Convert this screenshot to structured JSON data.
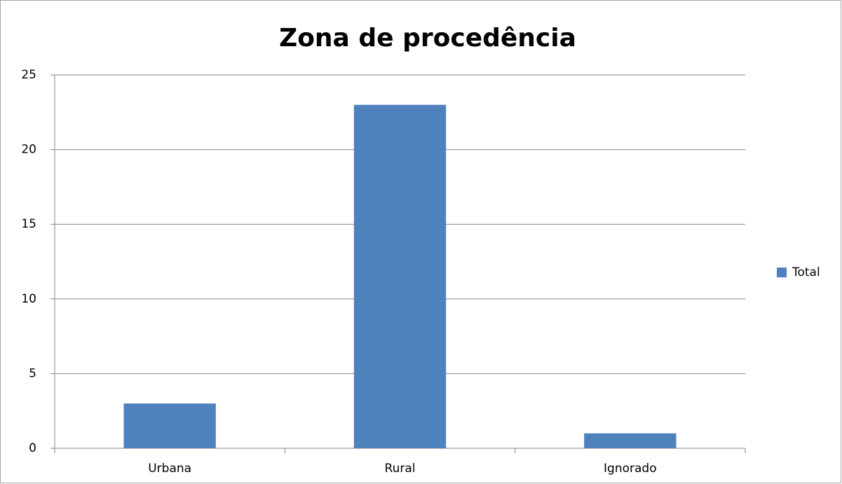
{
  "chart_data": {
    "type": "bar",
    "title": "Zona de procedência",
    "categories": [
      "Urbana",
      "Rural",
      "Ignorado"
    ],
    "series": [
      {
        "name": "Total",
        "color": "#4f81bd",
        "values": [
          3,
          23,
          1
        ]
      }
    ],
    "ylim": [
      0,
      25
    ],
    "yticks": [
      0,
      5,
      10,
      15,
      20,
      25
    ],
    "grid": true,
    "legend": "right"
  }
}
